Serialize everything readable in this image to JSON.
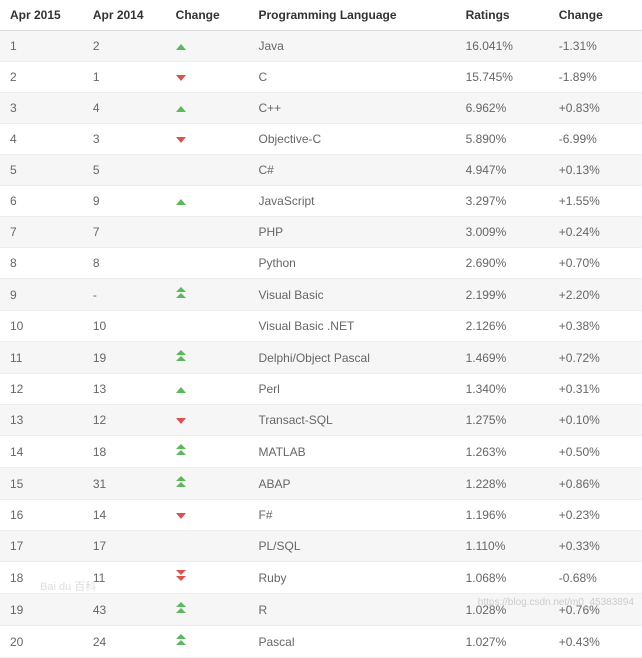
{
  "columns": {
    "apr2015": "Apr 2015",
    "apr2014": "Apr 2014",
    "change_icon": "Change",
    "language": "Programming Language",
    "ratings": "Ratings",
    "change_pct": "Change"
  },
  "icon_colors": {
    "up": "#5cb85c",
    "down": "#d9534f"
  },
  "row_colors": {
    "odd_bg": "#f6f6f6",
    "even_bg": "#ffffff",
    "text": "#666666",
    "border": "#eeeeee"
  },
  "rows": [
    {
      "apr2015": "1",
      "apr2014": "2",
      "change": "up",
      "language": "Java",
      "ratings": "16.041%",
      "change_pct": "-1.31%"
    },
    {
      "apr2015": "2",
      "apr2014": "1",
      "change": "down",
      "language": "C",
      "ratings": "15.745%",
      "change_pct": "-1.89%"
    },
    {
      "apr2015": "3",
      "apr2014": "4",
      "change": "up",
      "language": "C++",
      "ratings": "6.962%",
      "change_pct": "+0.83%"
    },
    {
      "apr2015": "4",
      "apr2014": "3",
      "change": "down",
      "language": "Objective-C",
      "ratings": "5.890%",
      "change_pct": "-6.99%"
    },
    {
      "apr2015": "5",
      "apr2014": "5",
      "change": "",
      "language": "C#",
      "ratings": "4.947%",
      "change_pct": "+0.13%"
    },
    {
      "apr2015": "6",
      "apr2014": "9",
      "change": "up",
      "language": "JavaScript",
      "ratings": "3.297%",
      "change_pct": "+1.55%"
    },
    {
      "apr2015": "7",
      "apr2014": "7",
      "change": "",
      "language": "PHP",
      "ratings": "3.009%",
      "change_pct": "+0.24%"
    },
    {
      "apr2015": "8",
      "apr2014": "8",
      "change": "",
      "language": "Python",
      "ratings": "2.690%",
      "change_pct": "+0.70%"
    },
    {
      "apr2015": "9",
      "apr2014": "-",
      "change": "dbl-up",
      "language": "Visual Basic",
      "ratings": "2.199%",
      "change_pct": "+2.20%"
    },
    {
      "apr2015": "10",
      "apr2014": "10",
      "change": "",
      "language": "Visual Basic .NET",
      "ratings": "2.126%",
      "change_pct": "+0.38%"
    },
    {
      "apr2015": "11",
      "apr2014": "19",
      "change": "dbl-up",
      "language": "Delphi/Object Pascal",
      "ratings": "1.469%",
      "change_pct": "+0.72%"
    },
    {
      "apr2015": "12",
      "apr2014": "13",
      "change": "up",
      "language": "Perl",
      "ratings": "1.340%",
      "change_pct": "+0.31%"
    },
    {
      "apr2015": "13",
      "apr2014": "12",
      "change": "down",
      "language": "Transact-SQL",
      "ratings": "1.275%",
      "change_pct": "+0.10%"
    },
    {
      "apr2015": "14",
      "apr2014": "18",
      "change": "dbl-up",
      "language": "MATLAB",
      "ratings": "1.263%",
      "change_pct": "+0.50%"
    },
    {
      "apr2015": "15",
      "apr2014": "31",
      "change": "dbl-up",
      "language": "ABAP",
      "ratings": "1.228%",
      "change_pct": "+0.86%"
    },
    {
      "apr2015": "16",
      "apr2014": "14",
      "change": "down",
      "language": "F#",
      "ratings": "1.196%",
      "change_pct": "+0.23%"
    },
    {
      "apr2015": "17",
      "apr2014": "17",
      "change": "",
      "language": "PL/SQL",
      "ratings": "1.110%",
      "change_pct": "+0.33%"
    },
    {
      "apr2015": "18",
      "apr2014": "11",
      "change": "dbl-down",
      "language": "Ruby",
      "ratings": "1.068%",
      "change_pct": "-0.68%"
    },
    {
      "apr2015": "19",
      "apr2014": "43",
      "change": "dbl-up",
      "language": "R",
      "ratings": "1.028%",
      "change_pct": "+0.76%"
    },
    {
      "apr2015": "20",
      "apr2014": "24",
      "change": "dbl-up",
      "language": "Pascal",
      "ratings": "1.027%",
      "change_pct": "+0.43%"
    }
  ],
  "watermark_right": "https://blog.csdn.net/m0_45383894",
  "watermark_left": "Bai du 百科"
}
